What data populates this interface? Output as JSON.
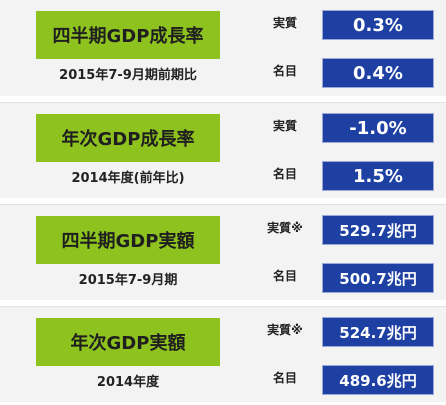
{
  "sections": [
    {
      "label": "四半期GDP成長率",
      "period": "2015年7-9月期前期比",
      "rows": [
        {
          "name": "実質",
          "value": "0.3%"
        },
        {
          "name": "名目",
          "value": "0.4%"
        }
      ]
    },
    {
      "label": "年次GDP成長率",
      "period": "2014年度(前年比)",
      "rows": [
        {
          "name": "実質",
          "value": "-1.0%"
        },
        {
          "name": "名目",
          "value": "1.5%"
        }
      ]
    },
    {
      "label": "四半期GDP実額",
      "period": "2015年7-9月期",
      "rows": [
        {
          "name": "実質※",
          "value": "529.7兆円"
        },
        {
          "name": "名目",
          "value": "500.7兆円"
        }
      ]
    },
    {
      "label": "年次GDP実額",
      "period": "2014年度",
      "rows": [
        {
          "name": "実質※",
          "value": "524.7兆円"
        },
        {
          "name": "名目",
          "value": "489.6兆円"
        }
      ]
    }
  ],
  "colors": {
    "label_background": "#8dc21f",
    "value_background": "#1e40a3",
    "section_background": "#f3f3f3"
  }
}
